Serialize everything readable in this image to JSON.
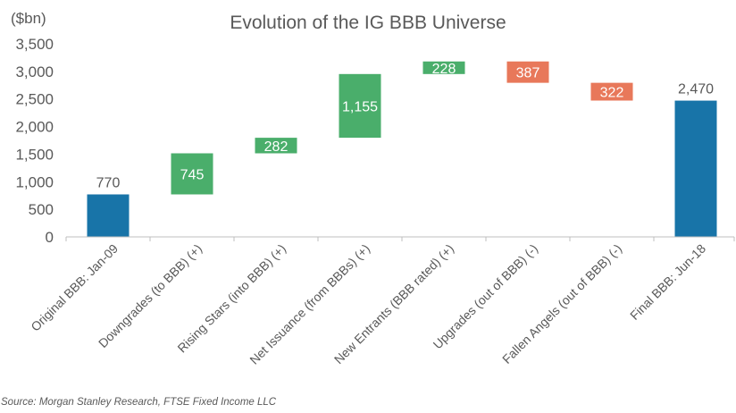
{
  "chart_data": {
    "type": "bar",
    "subtype": "waterfall",
    "title": "Evolution of the IG BBB Universe",
    "unit_label": "($bn)",
    "source": "Source: Morgan Stanley Research, FTSE Fixed Income LLC",
    "ylim": [
      0,
      3500
    ],
    "yticks": [
      "0",
      "500",
      "1,000",
      "1,500",
      "2,000",
      "2,500",
      "3,000",
      "3,500"
    ],
    "grid": false,
    "categories": [
      "Original BBB: Jan-09",
      "Downgrades (to BBB) (+)",
      "Rising Stars (into BBB) (+)",
      "Net Issuance (from BBBs) (+)",
      "New Entrants (BBB rated) (+)",
      "Upgrades (out of BBB) (-)",
      "Fallen Angels (out of BBB) (-)",
      "Final BBB: Jun-18"
    ],
    "values": [
      770,
      745,
      282,
      1155,
      228,
      -387,
      -322,
      2470
    ],
    "bar_kinds": [
      "total",
      "increase",
      "increase",
      "increase",
      "increase",
      "decrease",
      "decrease",
      "total"
    ],
    "data_labels": [
      "770",
      "745",
      "282",
      "1,155",
      "228",
      "387",
      "322",
      "2,470"
    ],
    "colors": {
      "total": "#1874A8",
      "increase": "#4AAE6B",
      "decrease": "#E8785A"
    }
  }
}
